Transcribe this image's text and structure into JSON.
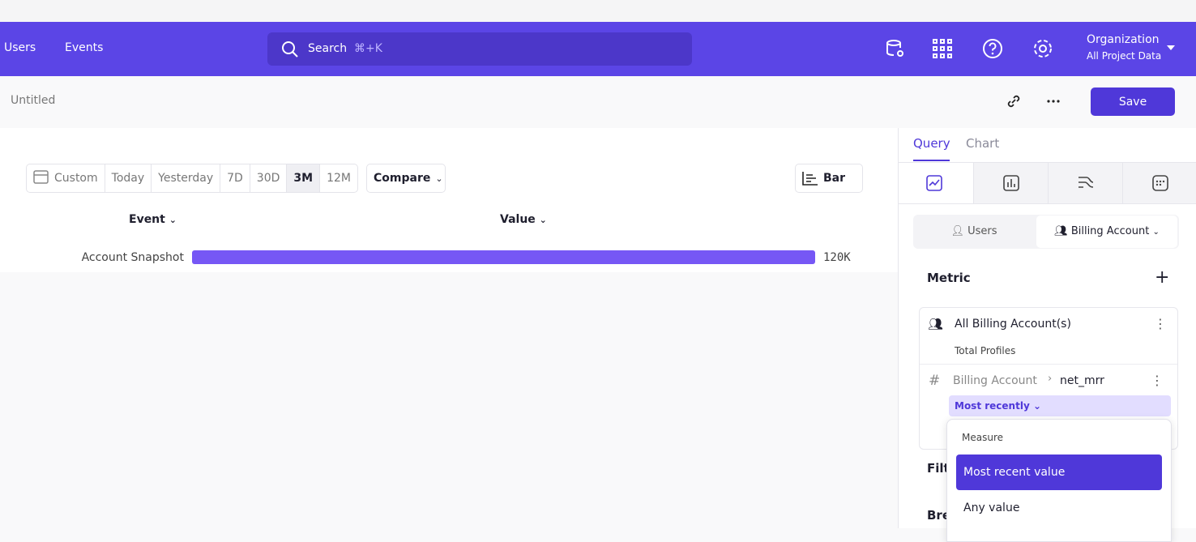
{
  "nav": {
    "links": [
      "Users",
      "Events"
    ],
    "search": {
      "placeholder": "Search",
      "shortcut": "⌘+K"
    },
    "org": {
      "name": "Organization",
      "project": "All Project Data"
    }
  },
  "toolbar": {
    "title": "Untitled",
    "save": "Save"
  },
  "controls": {
    "date_options": [
      "Custom",
      "Today",
      "Yesterday",
      "7D",
      "30D",
      "3M",
      "12M"
    ],
    "selected_date": "3M",
    "compare": "Compare",
    "chart_type": "Bar"
  },
  "report": {
    "columns": [
      "Event",
      "Value"
    ],
    "rows": [
      {
        "event": "Account Snapshot",
        "value": 120000,
        "value_label": "120K"
      }
    ],
    "bar_color": "#7657f5"
  },
  "panel": {
    "tabs": [
      "Query",
      "Chart"
    ],
    "active_tab": "Query",
    "entity_options": [
      "Users",
      "Billing Account"
    ],
    "selected_entity": "Billing Account",
    "metric": {
      "label": "Metric",
      "title": "All Billing Account(s)",
      "subtitle": "Total Profiles",
      "property_entity": "Billing Account",
      "property_name": "net_mrr",
      "aggregation": "Most recently"
    },
    "sections": [
      "Filte",
      "Bre"
    ],
    "menu": {
      "header": "Measure",
      "options": [
        "Most recent value",
        "Any value"
      ],
      "highlighted": "Most recent value"
    }
  }
}
